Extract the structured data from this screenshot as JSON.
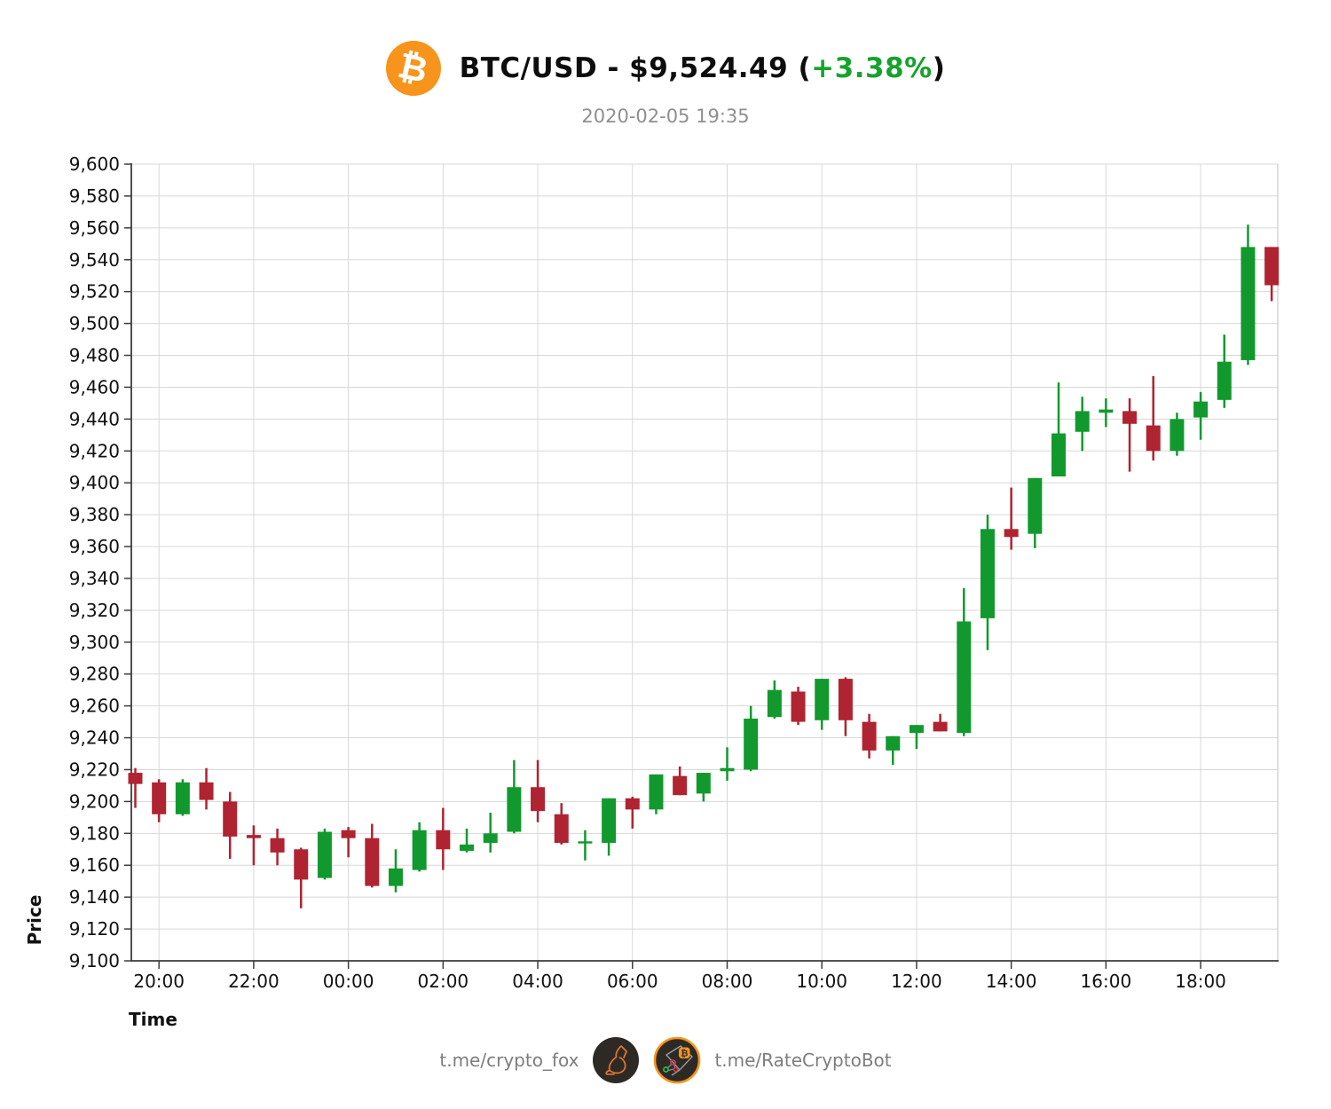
{
  "header": {
    "title_prefix": "BTC/USD - $9,524.49 (",
    "title_change": "+3.38%",
    "title_suffix": ")",
    "subtitle": "2020-02-05 19:35"
  },
  "footer": {
    "link1": "t.me/crypto_fox",
    "link2": "t.me/RateCryptoBot"
  },
  "icons": {
    "bitcoin_glyph": "₿"
  },
  "colors": {
    "up": "#12992e",
    "down": "#b02331",
    "grid": "#d8d8d8",
    "axis": "#3c3c3c",
    "right_spine": "#cccccc",
    "tick_text": "#111111",
    "change_green": "#17a22e",
    "subtitle_gray": "#8f8f8f",
    "footer_gray": "#7d7d7d",
    "bitcoin_orange": "#f7941c",
    "icon_bg": "#2d2a26",
    "icon_line_orange": "#e8762a"
  },
  "chart_data": {
    "type": "candlestick",
    "symbol": "BTC/USD",
    "last_price": 9524.49,
    "change_pct": 3.38,
    "title": "BTC/USD - $9,524.49 (+3.38%)",
    "subtitle": "2020-02-05 19:35",
    "xlabel": "Time",
    "ylabel": "Price",
    "ylim": [
      9100,
      9600
    ],
    "y_tick_step": 20,
    "grid": true,
    "x_ticks": [
      "20:00",
      "22:00",
      "00:00",
      "02:00",
      "04:00",
      "06:00",
      "08:00",
      "10:00",
      "12:00",
      "14:00",
      "16:00",
      "18:00"
    ],
    "x_tick_indices": [
      1,
      5,
      9,
      13,
      17,
      21,
      25,
      29,
      33,
      37,
      41,
      45
    ],
    "candles": [
      {
        "time": "19:30",
        "open": 9218,
        "high": 9221,
        "low": 9196,
        "close": 9211
      },
      {
        "time": "20:00",
        "open": 9212,
        "high": 9214,
        "low": 9187,
        "close": 9192
      },
      {
        "time": "20:30",
        "open": 9192,
        "high": 9214,
        "low": 9191,
        "close": 9212
      },
      {
        "time": "21:00",
        "open": 9212,
        "high": 9221,
        "low": 9195,
        "close": 9201
      },
      {
        "time": "21:30",
        "open": 9200,
        "high": 9206,
        "low": 9164,
        "close": 9178
      },
      {
        "time": "22:00",
        "open": 9179,
        "high": 9185,
        "low": 9160,
        "close": 9177
      },
      {
        "time": "22:30",
        "open": 9177,
        "high": 9183,
        "low": 9160,
        "close": 9168
      },
      {
        "time": "23:00",
        "open": 9170,
        "high": 9171,
        "low": 9133,
        "close": 9151
      },
      {
        "time": "23:30",
        "open": 9152,
        "high": 9183,
        "low": 9151,
        "close": 9181
      },
      {
        "time": "00:00",
        "open": 9182,
        "high": 9184,
        "low": 9165,
        "close": 9177
      },
      {
        "time": "00:30",
        "open": 9177,
        "high": 9186,
        "low": 9146,
        "close": 9147
      },
      {
        "time": "01:00",
        "open": 9147,
        "high": 9170,
        "low": 9143,
        "close": 9158
      },
      {
        "time": "01:30",
        "open": 9157,
        "high": 9187,
        "low": 9156,
        "close": 9182
      },
      {
        "time": "02:00",
        "open": 9182,
        "high": 9196,
        "low": 9157,
        "close": 9170
      },
      {
        "time": "02:30",
        "open": 9169,
        "high": 9183,
        "low": 9168,
        "close": 9173
      },
      {
        "time": "03:00",
        "open": 9174,
        "high": 9193,
        "low": 9168,
        "close": 9180
      },
      {
        "time": "03:30",
        "open": 9181,
        "high": 9226,
        "low": 9180,
        "close": 9209
      },
      {
        "time": "04:00",
        "open": 9209,
        "high": 9226,
        "low": 9187,
        "close": 9194
      },
      {
        "time": "04:30",
        "open": 9192,
        "high": 9199,
        "low": 9173,
        "close": 9174
      },
      {
        "time": "05:00",
        "open": 9174,
        "high": 9182,
        "low": 9163,
        "close": 9175
      },
      {
        "time": "05:30",
        "open": 9174,
        "high": 9202,
        "low": 9166,
        "close": 9202
      },
      {
        "time": "06:00",
        "open": 9202,
        "high": 9203,
        "low": 9183,
        "close": 9195
      },
      {
        "time": "06:30",
        "open": 9195,
        "high": 9217,
        "low": 9192,
        "close": 9217
      },
      {
        "time": "07:00",
        "open": 9216,
        "high": 9222,
        "low": 9204,
        "close": 9204
      },
      {
        "time": "07:30",
        "open": 9205,
        "high": 9218,
        "low": 9200,
        "close": 9218
      },
      {
        "time": "08:00",
        "open": 9219,
        "high": 9234,
        "low": 9213,
        "close": 9221
      },
      {
        "time": "08:30",
        "open": 9220,
        "high": 9260,
        "low": 9219,
        "close": 9252
      },
      {
        "time": "09:00",
        "open": 9253,
        "high": 9276,
        "low": 9252,
        "close": 9270
      },
      {
        "time": "09:30",
        "open": 9269,
        "high": 9272,
        "low": 9248,
        "close": 9250
      },
      {
        "time": "10:00",
        "open": 9251,
        "high": 9277,
        "low": 9245,
        "close": 9277
      },
      {
        "time": "10:30",
        "open": 9277,
        "high": 9278,
        "low": 9241,
        "close": 9251
      },
      {
        "time": "11:00",
        "open": 9250,
        "high": 9255,
        "low": 9227,
        "close": 9232
      },
      {
        "time": "11:30",
        "open": 9232,
        "high": 9241,
        "low": 9223,
        "close": 9241
      },
      {
        "time": "12:00",
        "open": 9243,
        "high": 9248,
        "low": 9233,
        "close": 9248
      },
      {
        "time": "12:30",
        "open": 9250,
        "high": 9255,
        "low": 9244,
        "close": 9244
      },
      {
        "time": "13:00",
        "open": 9243,
        "high": 9334,
        "low": 9241,
        "close": 9313
      },
      {
        "time": "13:30",
        "open": 9315,
        "high": 9380,
        "low": 9295,
        "close": 9371
      },
      {
        "time": "14:00",
        "open": 9371,
        "high": 9397,
        "low": 9358,
        "close": 9366
      },
      {
        "time": "14:30",
        "open": 9368,
        "high": 9403,
        "low": 9359,
        "close": 9403
      },
      {
        "time": "15:00",
        "open": 9404,
        "high": 9463,
        "low": 9404,
        "close": 9431
      },
      {
        "time": "15:30",
        "open": 9432,
        "high": 9454,
        "low": 9420,
        "close": 9445
      },
      {
        "time": "16:00",
        "open": 9444,
        "high": 9453,
        "low": 9435,
        "close": 9446
      },
      {
        "time": "16:30",
        "open": 9445,
        "high": 9453,
        "low": 9407,
        "close": 9437
      },
      {
        "time": "17:00",
        "open": 9436,
        "high": 9467,
        "low": 9414,
        "close": 9420
      },
      {
        "time": "17:30",
        "open": 9420,
        "high": 9444,
        "low": 9417,
        "close": 9440
      },
      {
        "time": "18:00",
        "open": 9441,
        "high": 9457,
        "low": 9427,
        "close": 9451
      },
      {
        "time": "18:30",
        "open": 9452,
        "high": 9493,
        "low": 9447,
        "close": 9476
      },
      {
        "time": "19:00",
        "open": 9477,
        "high": 9562,
        "low": 9474,
        "close": 9548
      },
      {
        "time": "19:30",
        "open": 9548,
        "high": 9548,
        "low": 9514,
        "close": 9524
      }
    ]
  }
}
